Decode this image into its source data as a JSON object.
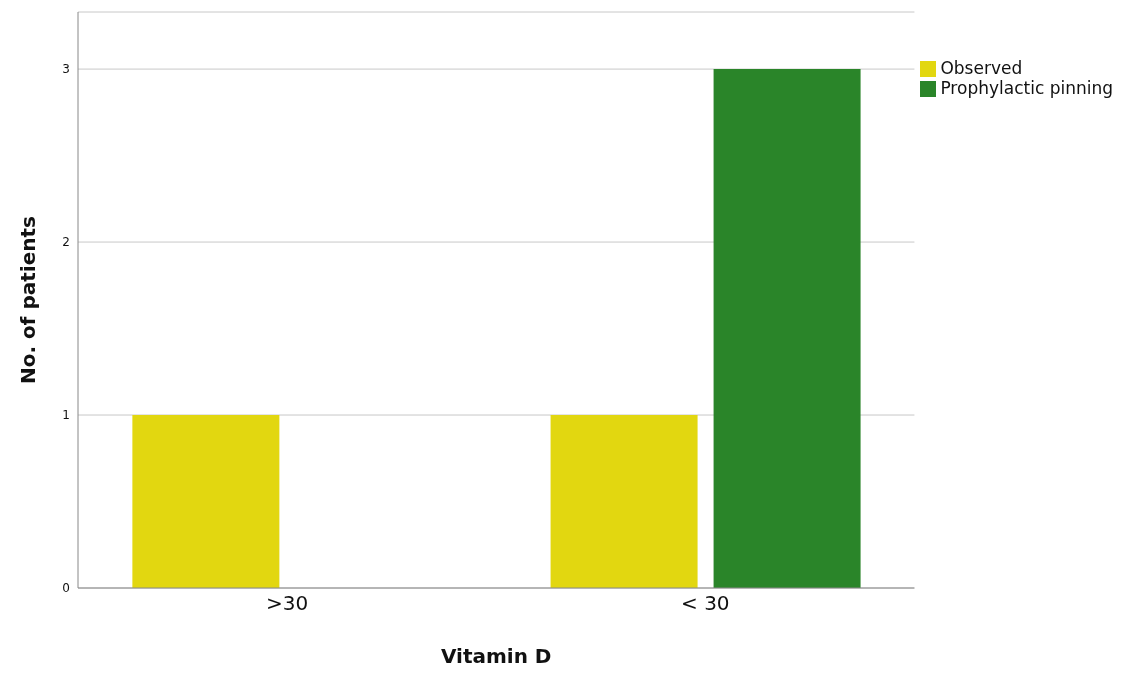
{
  "chart_data": {
    "type": "bar",
    "xlabel": "Vitamin D",
    "ylabel": "No. of patients",
    "categories": [
      ">30",
      "< 30"
    ],
    "series": [
      {
        "name": "Observed",
        "color": "#e2d710",
        "values": [
          1,
          1
        ]
      },
      {
        "name": "Prophylactic pinning",
        "color": "#2a8529",
        "values": [
          0,
          3
        ]
      }
    ],
    "ylim": [
      0,
      3.33
    ],
    "yticks": [
      0,
      1,
      2,
      3
    ],
    "grid": "y",
    "legend": "top right"
  }
}
